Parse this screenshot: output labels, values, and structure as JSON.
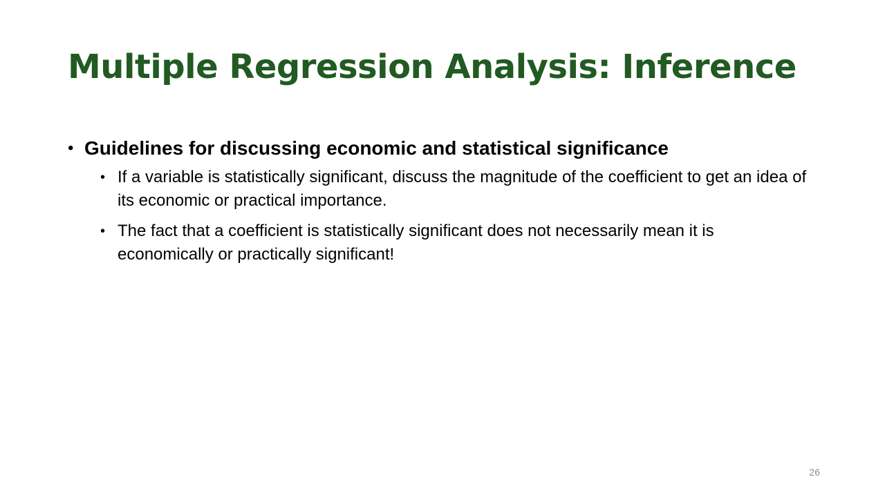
{
  "slide": {
    "title": "Multiple Regression Analysis: Inference",
    "title_color": "#215a22",
    "bullet_glyph": "•",
    "main_bullet": "Guidelines for discussing economic and statistical significance",
    "sub_bullets": [
      "If a variable is statistically significant, discuss the magnitude of the coefficient to get an idea of its economic or practical importance.",
      "The fact that a coefficient is statistically significant does not necessarily mean it is economically or practically significant!"
    ],
    "page_number": "26"
  }
}
